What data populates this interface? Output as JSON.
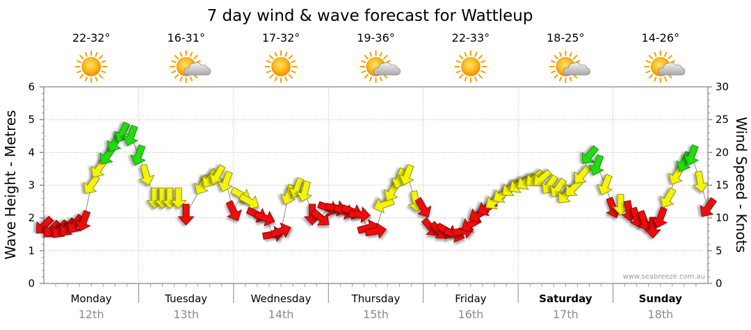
{
  "chart_data": {
    "type": "line",
    "title": "7 day wind & wave forecast for Wattleup",
    "ylabel_left": "Wave Height - Metres",
    "ylabel_right": "Wind Speed - Knots",
    "ylim_left": [
      0,
      6
    ],
    "ylim_right": [
      0,
      30
    ],
    "yticks_left": [
      "0",
      "1",
      "2",
      "3",
      "4",
      "5",
      "6"
    ],
    "yticks_right": [
      "0",
      "5",
      "10",
      "15",
      "20",
      "25",
      "30"
    ],
    "grid": "dotted",
    "days": [
      {
        "name": "Monday",
        "date": "12th",
        "temp": "22-32°",
        "icon": "sun-icon",
        "bold": false
      },
      {
        "name": "Tuesday",
        "date": "13th",
        "temp": "16-31°",
        "icon": "sun-cloud-icon",
        "bold": false
      },
      {
        "name": "Wednesday",
        "date": "14th",
        "temp": "17-32°",
        "icon": "sun-icon",
        "bold": false
      },
      {
        "name": "Thursday",
        "date": "15th",
        "temp": "19-36°",
        "icon": "sun-cloud-icon",
        "bold": false
      },
      {
        "name": "Friday",
        "date": "16th",
        "temp": "22-33°",
        "icon": "sun-icon",
        "bold": false
      },
      {
        "name": "Saturday",
        "date": "17th",
        "temp": "18-25°",
        "icon": "sun-cloud-icon",
        "bold": true
      },
      {
        "name": "Sunday",
        "date": "18th",
        "temp": "14-26°",
        "icon": "sun-cloud-icon",
        "bold": true
      }
    ],
    "colors": {
      "low": "#ee1111",
      "moderate": "#f3f311",
      "strong": "#22dd11"
    },
    "series": [
      {
        "name": "Wind Speed",
        "axis": "right",
        "unit": "knots",
        "points": [
          {
            "t": 0.0,
            "v": 8.8,
            "dir": 225
          },
          {
            "t": 0.08,
            "v": 8.2,
            "dir": 225
          },
          {
            "t": 0.17,
            "v": 8.2,
            "dir": 220
          },
          {
            "t": 0.25,
            "v": 8.5,
            "dir": 220
          },
          {
            "t": 0.33,
            "v": 9.0,
            "dir": 215
          },
          {
            "t": 0.42,
            "v": 9.5,
            "dir": 200
          },
          {
            "t": 0.5,
            "v": 15.0,
            "dir": 215
          },
          {
            "t": 0.58,
            "v": 17.5,
            "dir": 215
          },
          {
            "t": 0.67,
            "v": 19.5,
            "dir": 215
          },
          {
            "t": 0.75,
            "v": 21.5,
            "dir": 210
          },
          {
            "t": 0.83,
            "v": 23.0,
            "dir": 205
          },
          {
            "t": 0.92,
            "v": 22.5,
            "dir": 200
          },
          {
            "t": 1.0,
            "v": 19.5,
            "dir": 200
          },
          {
            "t": 1.08,
            "v": 16.5,
            "dir": 165
          },
          {
            "t": 1.17,
            "v": 13.0,
            "dir": 180
          },
          {
            "t": 1.25,
            "v": 13.0,
            "dir": 180
          },
          {
            "t": 1.33,
            "v": 13.0,
            "dir": 180
          },
          {
            "t": 1.42,
            "v": 13.0,
            "dir": 180
          },
          {
            "t": 1.5,
            "v": 10.5,
            "dir": 180
          },
          {
            "t": 1.67,
            "v": 15.0,
            "dir": 210
          },
          {
            "t": 1.75,
            "v": 16.0,
            "dir": 215
          },
          {
            "t": 1.83,
            "v": 16.5,
            "dir": 210
          },
          {
            "t": 1.92,
            "v": 15.5,
            "dir": 200
          },
          {
            "t": 2.0,
            "v": 11.0,
            "dir": 155
          },
          {
            "t": 2.08,
            "v": 13.5,
            "dir": 120
          },
          {
            "t": 2.17,
            "v": 12.5,
            "dir": 120
          },
          {
            "t": 2.25,
            "v": 10.5,
            "dir": 115
          },
          {
            "t": 2.33,
            "v": 10.0,
            "dir": 110
          },
          {
            "t": 2.42,
            "v": 7.5,
            "dir": 80
          },
          {
            "t": 2.5,
            "v": 8.0,
            "dir": 70
          },
          {
            "t": 2.58,
            "v": 13.5,
            "dir": 200
          },
          {
            "t": 2.67,
            "v": 14.5,
            "dir": 200
          },
          {
            "t": 2.75,
            "v": 14.0,
            "dir": 195
          },
          {
            "t": 2.83,
            "v": 10.5,
            "dir": 180
          },
          {
            "t": 2.92,
            "v": 10.0,
            "dir": 130
          },
          {
            "t": 3.0,
            "v": 11.5,
            "dir": 110
          },
          {
            "t": 3.08,
            "v": 11.5,
            "dir": 100
          },
          {
            "t": 3.17,
            "v": 11.0,
            "dir": 110
          },
          {
            "t": 3.25,
            "v": 11.0,
            "dir": 110
          },
          {
            "t": 3.33,
            "v": 10.5,
            "dir": 95
          },
          {
            "t": 3.42,
            "v": 8.5,
            "dir": 75
          },
          {
            "t": 3.5,
            "v": 8.0,
            "dir": 80
          },
          {
            "t": 3.58,
            "v": 12.0,
            "dir": 250
          },
          {
            "t": 3.67,
            "v": 14.0,
            "dir": 210
          },
          {
            "t": 3.75,
            "v": 16.0,
            "dir": 200
          },
          {
            "t": 3.83,
            "v": 16.5,
            "dir": 200
          },
          {
            "t": 3.92,
            "v": 12.5,
            "dir": 170
          },
          {
            "t": 4.0,
            "v": 11.5,
            "dir": 150
          },
          {
            "t": 4.08,
            "v": 8.5,
            "dir": 140
          },
          {
            "t": 4.17,
            "v": 8.0,
            "dir": 135
          },
          {
            "t": 4.25,
            "v": 8.0,
            "dir": 120
          },
          {
            "t": 4.33,
            "v": 7.5,
            "dir": 110
          },
          {
            "t": 4.42,
            "v": 8.0,
            "dir": 80
          },
          {
            "t": 4.5,
            "v": 9.0,
            "dir": 240
          },
          {
            "t": 4.58,
            "v": 10.5,
            "dir": 240
          },
          {
            "t": 4.67,
            "v": 11.5,
            "dir": 240
          },
          {
            "t": 4.75,
            "v": 12.5,
            "dir": 235
          },
          {
            "t": 4.83,
            "v": 13.5,
            "dir": 235
          },
          {
            "t": 4.92,
            "v": 14.5,
            "dir": 230
          },
          {
            "t": 5.0,
            "v": 15.0,
            "dir": 235
          },
          {
            "t": 5.08,
            "v": 15.5,
            "dir": 235
          },
          {
            "t": 5.17,
            "v": 16.0,
            "dir": 230
          },
          {
            "t": 5.25,
            "v": 16.0,
            "dir": 230
          },
          {
            "t": 5.33,
            "v": 15.0,
            "dir": 215
          },
          {
            "t": 5.42,
            "v": 14.5,
            "dir": 215
          },
          {
            "t": 5.5,
            "v": 13.5,
            "dir": 220
          },
          {
            "t": 5.58,
            "v": 14.5,
            "dir": 225
          },
          {
            "t": 5.67,
            "v": 16.5,
            "dir": 220
          },
          {
            "t": 5.75,
            "v": 19.5,
            "dir": 220
          },
          {
            "t": 5.83,
            "v": 18.0,
            "dir": 200
          },
          {
            "t": 5.92,
            "v": 15.0,
            "dir": 200
          },
          {
            "t": 6.0,
            "v": 11.5,
            "dir": 160
          },
          {
            "t": 6.08,
            "v": 12.0,
            "dir": 180
          },
          {
            "t": 6.17,
            "v": 11.0,
            "dir": 170
          },
          {
            "t": 6.25,
            "v": 10.0,
            "dir": 160
          },
          {
            "t": 6.33,
            "v": 9.5,
            "dir": 160
          },
          {
            "t": 6.42,
            "v": 8.5,
            "dir": 180
          },
          {
            "t": 6.5,
            "v": 10.0,
            "dir": 200
          },
          {
            "t": 6.58,
            "v": 13.0,
            "dir": 210
          },
          {
            "t": 6.67,
            "v": 16.5,
            "dir": 210
          },
          {
            "t": 6.75,
            "v": 18.5,
            "dir": 205
          },
          {
            "t": 6.83,
            "v": 19.5,
            "dir": 200
          },
          {
            "t": 6.92,
            "v": 15.5,
            "dir": 170
          },
          {
            "t": 7.0,
            "v": 11.5,
            "dir": 215
          }
        ]
      }
    ],
    "legend": "none",
    "watermark": "www.seabreeze.com.au"
  }
}
